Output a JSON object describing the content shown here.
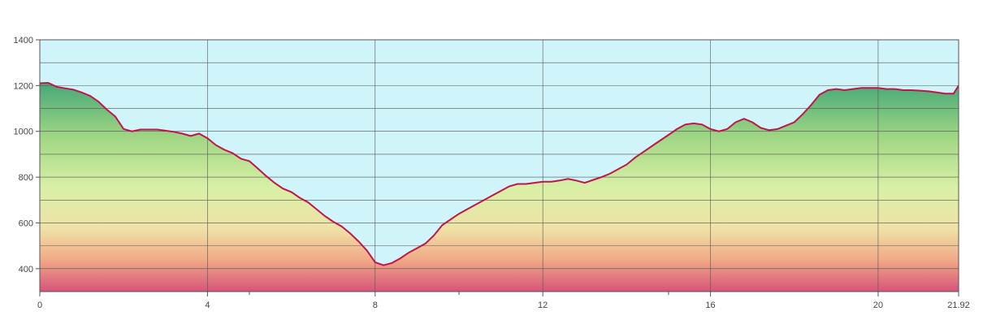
{
  "chart_data": {
    "type": "area",
    "title": "",
    "xlabel": "",
    "ylabel": "",
    "xlim": [
      0,
      21.92
    ],
    "ylim": [
      300,
      1400
    ],
    "x_ticks": [
      {
        "value": 0,
        "label": "0"
      },
      {
        "value": 4,
        "label": "4"
      },
      {
        "value": 8,
        "label": "8"
      },
      {
        "value": 12,
        "label": "12"
      },
      {
        "value": 16,
        "label": "16"
      },
      {
        "value": 20,
        "label": "20"
      },
      {
        "value": 21.92,
        "label": "21.92"
      }
    ],
    "x_minor_ticks": [
      5,
      10,
      15
    ],
    "y_ticks": [
      {
        "value": 400,
        "label": "400"
      },
      {
        "value": 600,
        "label": "600"
      },
      {
        "value": 800,
        "label": "800"
      },
      {
        "value": 1000,
        "label": "1000"
      },
      {
        "value": 1200,
        "label": "1200"
      },
      {
        "value": 1400,
        "label": "1400"
      }
    ],
    "y_minor_gridlines": [
      500,
      700,
      900,
      1100,
      1300
    ],
    "grid": true,
    "colors": {
      "line": "#c0154a",
      "sky": "#cff5fb",
      "grid": "#555555",
      "gradient": [
        "#4aaa78",
        "#9fd683",
        "#d9f0a6",
        "#efe2a6",
        "#f0a987",
        "#d8557a"
      ]
    },
    "series": [
      {
        "x": [
          0,
          0.2,
          0.4,
          0.6,
          0.8,
          1.0,
          1.2,
          1.4,
          1.6,
          1.8,
          2.0,
          2.2,
          2.4,
          2.6,
          2.8,
          3.0,
          3.2,
          3.4,
          3.6,
          3.8,
          4.0,
          4.2,
          4.4,
          4.6,
          4.8,
          5.0,
          5.2,
          5.4,
          5.6,
          5.8,
          6.0,
          6.2,
          6.4,
          6.6,
          6.8,
          7.0,
          7.2,
          7.4,
          7.6,
          7.8,
          8.0,
          8.2,
          8.4,
          8.6,
          8.8,
          9.0,
          9.2,
          9.4,
          9.6,
          9.8,
          10.0,
          10.2,
          10.4,
          10.6,
          10.8,
          11.0,
          11.2,
          11.4,
          11.6,
          11.8,
          12.0,
          12.2,
          12.4,
          12.6,
          12.8,
          13.0,
          13.2,
          13.4,
          13.6,
          13.8,
          14.0,
          14.2,
          14.4,
          14.6,
          14.8,
          15.0,
          15.2,
          15.4,
          15.6,
          15.8,
          16.0,
          16.2,
          16.4,
          16.6,
          16.8,
          17.0,
          17.2,
          17.4,
          17.6,
          17.8,
          18.0,
          18.2,
          18.4,
          18.6,
          18.8,
          19.0,
          19.2,
          19.4,
          19.6,
          19.8,
          20.0,
          20.2,
          20.4,
          20.6,
          20.8,
          21.0,
          21.2,
          21.4,
          21.6,
          21.8,
          21.92
        ],
        "y": [
          1210,
          1212,
          1195,
          1188,
          1182,
          1170,
          1155,
          1130,
          1095,
          1065,
          1010,
          1000,
          1008,
          1008,
          1008,
          1003,
          998,
          990,
          980,
          990,
          970,
          940,
          920,
          905,
          880,
          870,
          838,
          805,
          775,
          750,
          735,
          710,
          690,
          660,
          630,
          605,
          585,
          555,
          520,
          480,
          428,
          415,
          425,
          445,
          470,
          490,
          510,
          545,
          590,
          615,
          640,
          660,
          680,
          700,
          720,
          740,
          760,
          770,
          770,
          775,
          780,
          780,
          785,
          792,
          785,
          775,
          788,
          800,
          815,
          835,
          855,
          885,
          910,
          935,
          960,
          985,
          1010,
          1030,
          1035,
          1030,
          1010,
          1000,
          1010,
          1040,
          1055,
          1040,
          1015,
          1005,
          1010,
          1025,
          1040,
          1075,
          1115,
          1160,
          1180,
          1185,
          1180,
          1185,
          1190,
          1190,
          1190,
          1185,
          1185,
          1180,
          1180,
          1178,
          1175,
          1170,
          1165,
          1165,
          1200
        ]
      }
    ]
  }
}
